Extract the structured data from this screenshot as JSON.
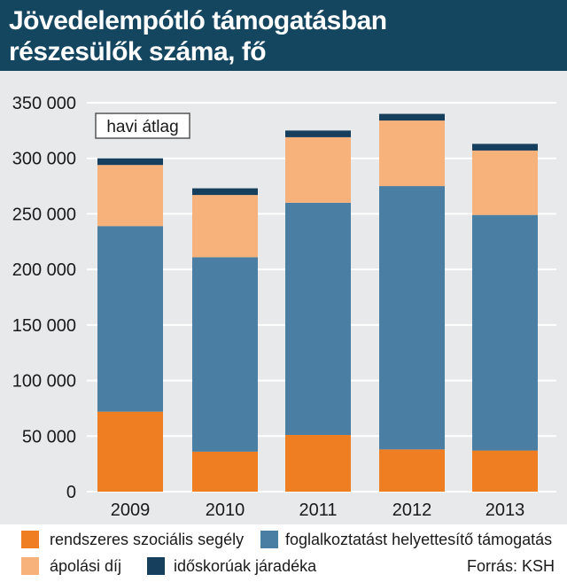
{
  "title": "Jövedelempótló támogatásban\nrészesülők száma, fő",
  "annotation": "havi átlag",
  "source": "Forrás: KSH",
  "colors": {
    "header_bg": "#15465f",
    "plot_bg": "#e8e9ea",
    "rendszeres": "#ef7d22",
    "foglalkoztatast": "#4a7ea3",
    "apolasi": "#f7b27b",
    "idoskoruak": "#153f5c"
  },
  "chart_data": {
    "type": "bar",
    "stacked": true,
    "title": "Jövedelempótló támogatásban részesülők száma, fő",
    "categories": [
      "2009",
      "2010",
      "2011",
      "2012",
      "2013"
    ],
    "series": [
      {
        "name": "rendszeres szociális segély",
        "color": "#ef7d22",
        "values": [
          72000,
          36000,
          51000,
          38000,
          37000
        ]
      },
      {
        "name": "foglalkoztatást helyettesítő támogatás",
        "color": "#4a7ea3",
        "values": [
          167000,
          175000,
          209000,
          237000,
          212000
        ]
      },
      {
        "name": "ápolási díj",
        "color": "#f7b27b",
        "values": [
          55000,
          56000,
          59000,
          59000,
          58000
        ]
      },
      {
        "name": "időskorúak járadéka",
        "color": "#153f5c",
        "values": [
          6000,
          6000,
          6000,
          6000,
          6000
        ]
      }
    ],
    "yticks": [
      "0",
      "50 000",
      "100 000",
      "150 000",
      "200 000",
      "250 000",
      "300 000",
      "350 000"
    ],
    "ylim": [
      0,
      350000
    ],
    "xlabel": "",
    "ylabel": "",
    "grid": true,
    "legend_position": "bottom"
  }
}
